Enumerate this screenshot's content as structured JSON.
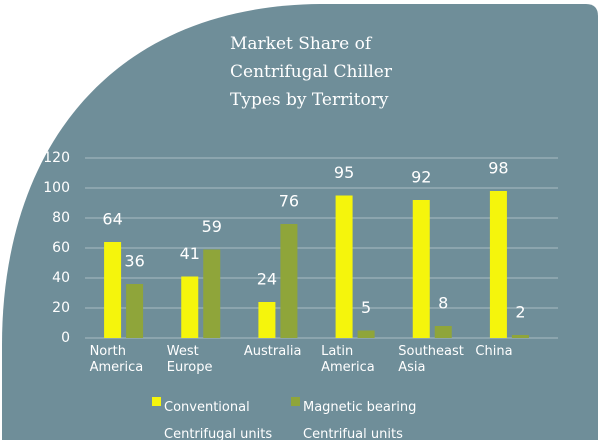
{
  "chart_data": {
    "type": "bar",
    "title": "Market Share of Centrifugal Chiller Types by Territory",
    "categories": [
      "North America",
      "West Europe",
      "Australia",
      "Latin America",
      "Southeast Asia",
      "China"
    ],
    "series": [
      {
        "name": "Conventional Centrifugal units",
        "color": "#f5f50c",
        "values": [
          64,
          41,
          24,
          95,
          92,
          98
        ]
      },
      {
        "name": "Magnetic bearing Centrifual units",
        "color": "#8fa53a",
        "values": [
          36,
          59,
          76,
          5,
          8,
          2
        ]
      }
    ],
    "ylim": [
      0,
      120
    ],
    "yticks": [
      0,
      20,
      40,
      60,
      80,
      100,
      120
    ],
    "grid": true
  }
}
